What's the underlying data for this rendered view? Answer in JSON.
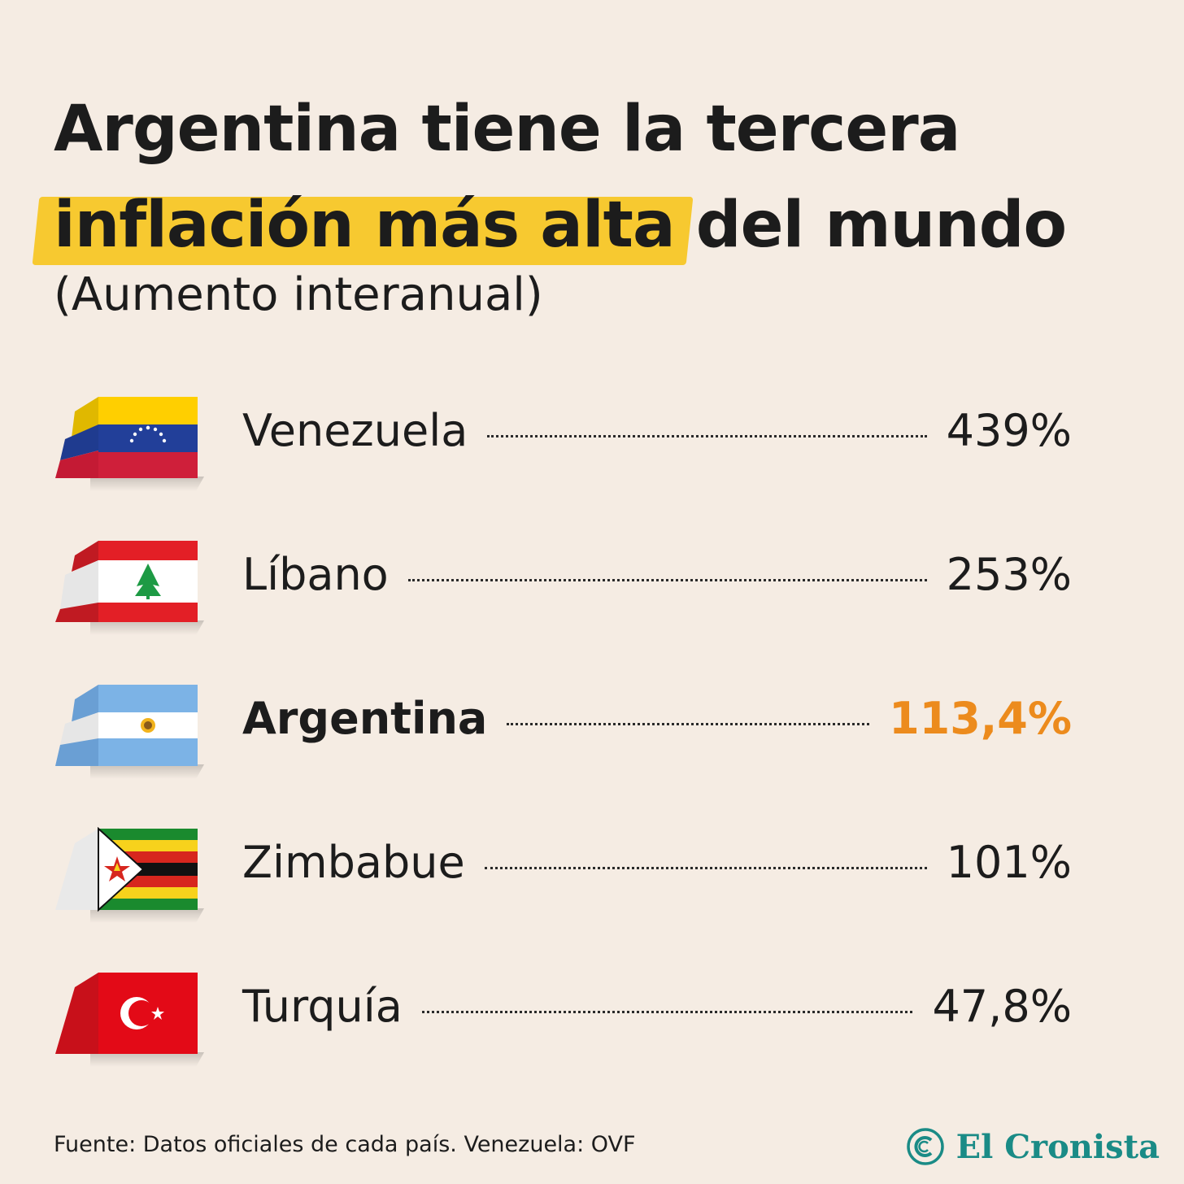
{
  "title": {
    "line1": "Argentina tiene la tercera",
    "highlight": "inflación más alta",
    "line2_rest": "del mundo"
  },
  "subtitle": "(Aumento interanual)",
  "chart_data": {
    "type": "table",
    "rows": [
      {
        "country": "Venezuela",
        "value_label": "439%",
        "value": 439,
        "flag": "venezuela-flag"
      },
      {
        "country": "Líbano",
        "value_label": "253%",
        "value": 253,
        "flag": "lebanon-flag"
      },
      {
        "country": "Argentina",
        "value_label": "113,4%",
        "value": 113.4,
        "flag": "argentina-flag",
        "highlighted": true
      },
      {
        "country": "Zimbabue",
        "value_label": "101%",
        "value": 101,
        "flag": "zimbabwe-flag"
      },
      {
        "country": "Turquía",
        "value_label": "47,8%",
        "value": 47.8,
        "flag": "turkey-flag"
      }
    ],
    "highlight_color": "#ec8b1d",
    "marker_color": "#f7c930"
  },
  "source": "Fuente: Datos oficiales de cada país. Venezuela: OVF",
  "logo": {
    "text": "El Cronista",
    "color": "#1a8b86"
  }
}
